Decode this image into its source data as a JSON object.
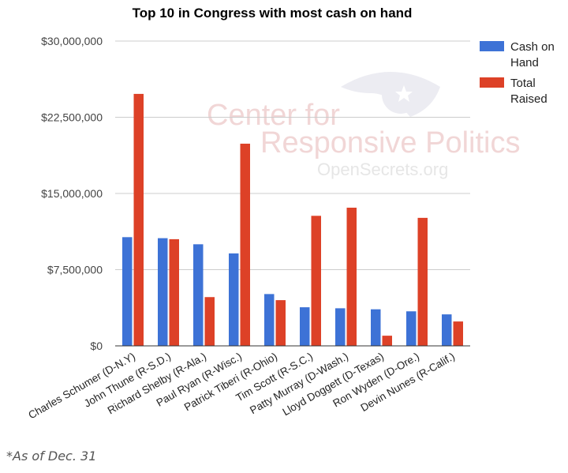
{
  "watermark": {
    "line1": "Center for",
    "line2": "Responsive Politics",
    "line3": "OpenSecrets.org",
    "logo_icon": "eye-star-icon"
  },
  "footnote": "*As of Dec. 31",
  "colors": {
    "cash": "#3d72d6",
    "raised": "#dd4127",
    "grid": "#cccccc",
    "axis": "#333333"
  },
  "chart_data": {
    "type": "bar",
    "title": "Top 10 in Congress with most cash on hand",
    "xlabel": "",
    "ylabel": "",
    "ylim": [
      0,
      30000000
    ],
    "yticks": [
      0,
      7500000,
      15000000,
      22500000,
      30000000
    ],
    "ytick_labels": [
      "$0",
      "$7,500,000",
      "$15,000,000",
      "$22,500,000",
      "$30,000,000"
    ],
    "grid": true,
    "legend_position": "right",
    "categories": [
      "Charles Schumer (D-N.Y)",
      "John Thune (R-S.D.)",
      "Richard Shelby (R-Ala.)",
      "Paul Ryan (R-Wisc.)",
      "Patrick Tiberi (R-Ohio)",
      "Tim Scott (R-S.C.)",
      "Patty Murray (D-Wash.)",
      "Lloyd Doggett (D-Texas)",
      "Ron Wyden (D-Ore.)",
      "Devin Nunes (R-Calif.)"
    ],
    "series": [
      {
        "name": "Cash on Hand",
        "legend_lines": [
          "Cash on",
          "Hand"
        ],
        "values": [
          10700000,
          10600000,
          10000000,
          9100000,
          5100000,
          3800000,
          3700000,
          3600000,
          3400000,
          3100000
        ]
      },
      {
        "name": "Total Raised",
        "legend_lines": [
          "Total",
          "Raised"
        ],
        "values": [
          24800000,
          10500000,
          4800000,
          19900000,
          4500000,
          12800000,
          13600000,
          1000000,
          12600000,
          2400000
        ]
      }
    ]
  }
}
